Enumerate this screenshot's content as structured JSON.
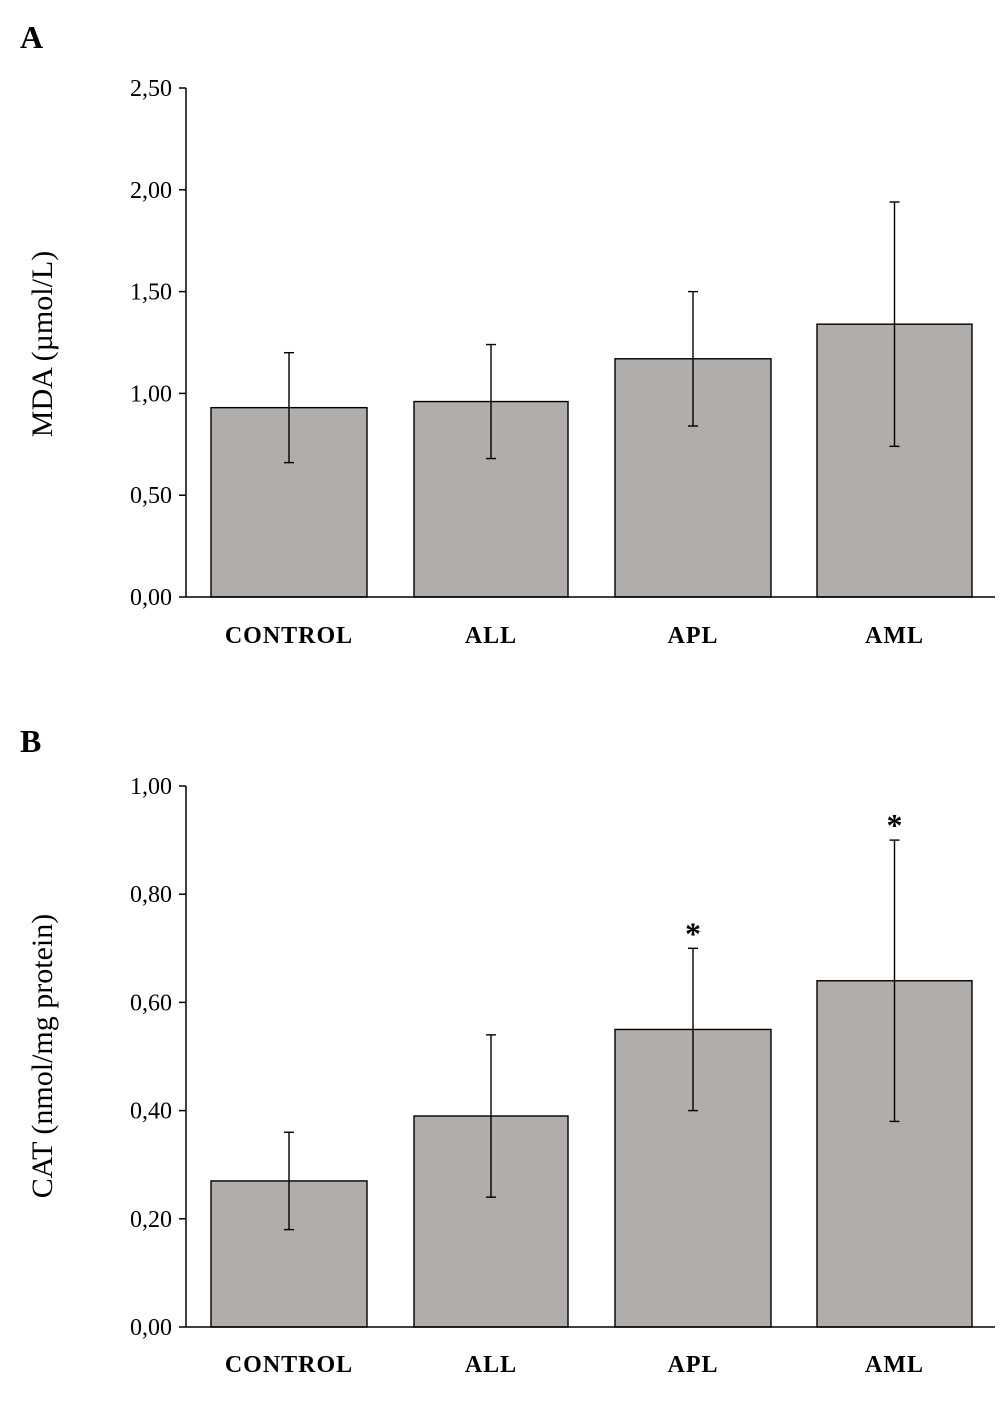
{
  "chart_data": [
    {
      "type": "bar",
      "panel_label": "A",
      "title": "",
      "xlabel": "",
      "ylabel": "MDA (µmol/L)",
      "ylim": [
        0,
        2.5
      ],
      "yticks": [
        "0,00",
        "0,50",
        "1,00",
        "1,50",
        "2,00",
        "2,50"
      ],
      "categories": [
        "CONTROL",
        "ALL",
        "APL",
        "AML"
      ],
      "values": [
        0.93,
        0.96,
        1.17,
        1.34
      ],
      "error_low": [
        0.66,
        0.68,
        0.84,
        0.74
      ],
      "error_high": [
        1.2,
        1.24,
        1.5,
        1.94
      ],
      "significance": [
        "",
        "",
        "",
        ""
      ],
      "bar_color": "#b0adaa",
      "grid": false,
      "legend": "none"
    },
    {
      "type": "bar",
      "panel_label": "B",
      "title": "",
      "xlabel": "",
      "ylabel": "CAT (nmol/mg protein)",
      "ylim": [
        0,
        1.0
      ],
      "yticks": [
        "0,00",
        "0,20",
        "0,40",
        "0,60",
        "0,80",
        "1,00"
      ],
      "categories": [
        "CONTROL",
        "ALL",
        "APL",
        "AML"
      ],
      "values": [
        0.27,
        0.39,
        0.55,
        0.64
      ],
      "error_low": [
        0.18,
        0.24,
        0.4,
        0.38
      ],
      "error_high": [
        0.36,
        0.54,
        0.7,
        0.9
      ],
      "significance": [
        "",
        "",
        "*",
        "*"
      ],
      "bar_color": "#b0adaa",
      "grid": false,
      "legend": "none"
    }
  ]
}
